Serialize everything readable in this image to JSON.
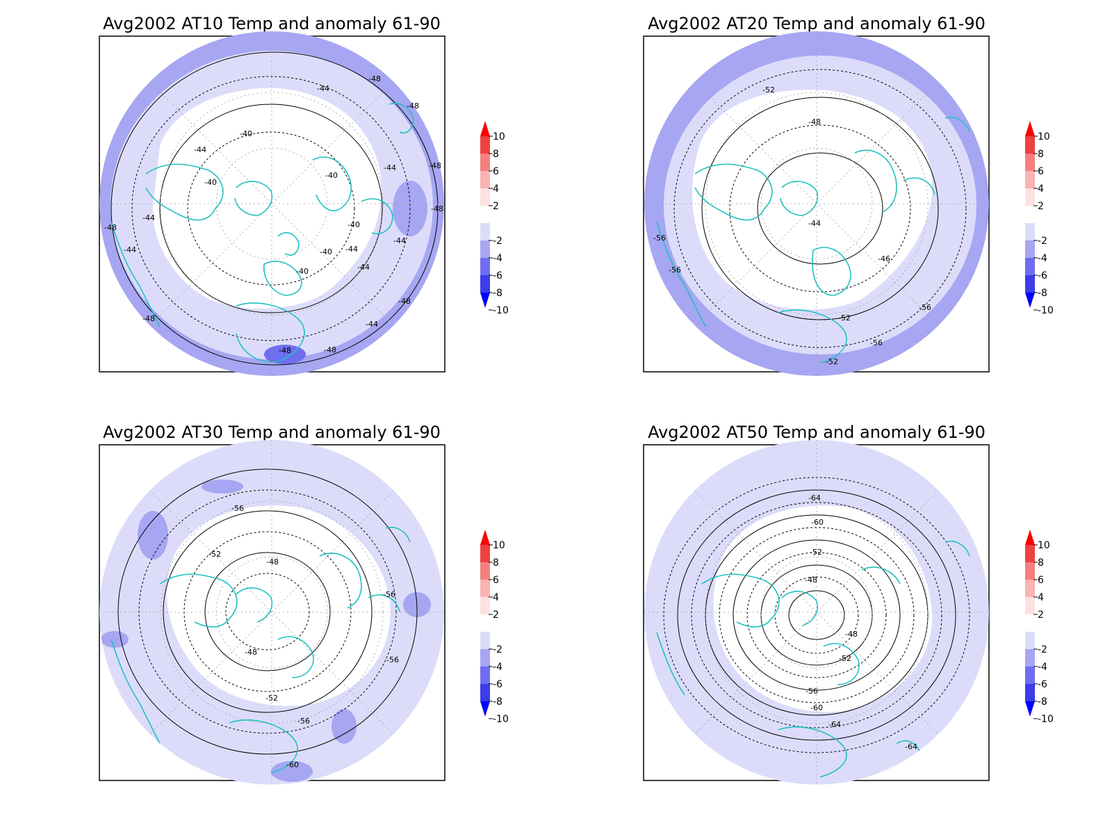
{
  "colors": {
    "background": "#ffffff",
    "frame": "#000000",
    "coastline": "#20c0c0",
    "grid": "#9a9a9a",
    "contour": "#000000",
    "anomaly_near_zero": "#ffffff",
    "anomaly_minus2_to_minus4": "#dcdcfa",
    "anomaly_minus4_to_minus6": "#a6a6f2",
    "anomaly_minus6_to_minus8": "#6e6ef0",
    "anomaly_minus8_to_minus10": "#3c3cec",
    "anomaly_below_minus10": "#0000ff",
    "anomaly_2_to_4": "#fde1e1",
    "anomaly_4_to_6": "#fbb3b3",
    "anomaly_6_to_8": "#f57f7f",
    "anomaly_8_to_10": "#f04040",
    "anomaly_above_10": "#ff0000"
  },
  "colorbar": {
    "labels": [
      "10",
      "8",
      "6",
      "4",
      "2",
      "-2",
      "-4",
      "-6",
      "-8",
      "-10"
    ]
  },
  "panels": [
    {
      "title": "Avg2002 AT10 Temp and anomaly 61-90",
      "contour_labels": [
        "-44",
        "-40",
        "-44",
        "-40",
        "-40",
        "-40",
        "-40",
        "-44",
        "-44",
        "-44",
        "-40",
        "-44",
        "-48",
        "-48",
        "-48",
        "-44",
        "-44",
        "-48",
        "-48",
        "-48",
        "-48",
        "-48",
        "-44",
        "-48"
      ],
      "anomaly_zones": [
        {
          "band": "near_zero",
          "desc": "polar cap"
        },
        {
          "band": "minus2_to_minus4",
          "desc": "mid-latitude ring"
        },
        {
          "band": "minus4_to_minus6",
          "desc": "outer edge patches"
        },
        {
          "band": "minus6_to_minus8",
          "desc": "small patch near bottom"
        }
      ]
    },
    {
      "title": "Avg2002 AT20 Temp and anomaly 61-90",
      "contour_labels": [
        "-52",
        "-48",
        "-44",
        "-46",
        "-52",
        "-56",
        "-56",
        "-56",
        "-52",
        "-56"
      ],
      "anomaly_zones": [
        {
          "band": "near_zero",
          "desc": "polar cap"
        },
        {
          "band": "minus2_to_minus4",
          "desc": "mid-latitude ring"
        },
        {
          "band": "minus4_to_minus6",
          "desc": "outer ring"
        }
      ]
    },
    {
      "title": "Avg2002 AT30 Temp and anomaly 61-90",
      "contour_labels": [
        "-56",
        "-52",
        "-48",
        "-48",
        "-56",
        "-56",
        "-52",
        "-56",
        "-60"
      ],
      "anomaly_zones": [
        {
          "band": "near_zero",
          "desc": "polar cap"
        },
        {
          "band": "minus2_to_minus4",
          "desc": "broad outer area"
        },
        {
          "band": "minus4_to_minus6",
          "desc": "scattered patches"
        }
      ]
    },
    {
      "title": "Avg2002 AT50 Temp and anomaly 61-90",
      "contour_labels": [
        "-64",
        "-60",
        "-52",
        "-48",
        "-48",
        "-52",
        "-56",
        "-60",
        "-64",
        "-64"
      ],
      "anomaly_zones": [
        {
          "band": "near_zero",
          "desc": "central vortex region"
        },
        {
          "band": "minus2_to_minus4",
          "desc": "outer area"
        }
      ]
    }
  ]
}
